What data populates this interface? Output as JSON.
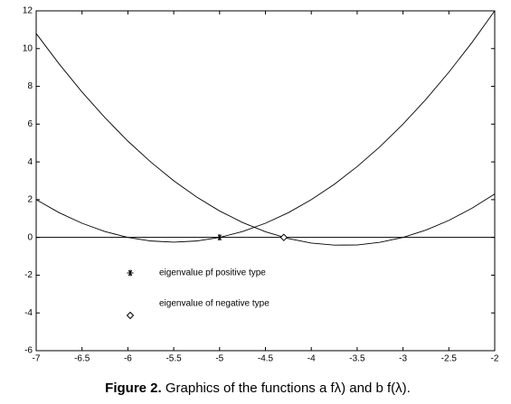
{
  "chart_data": {
    "type": "line",
    "x": [
      -7,
      -6.75,
      -6.5,
      -6.25,
      -6,
      -5.75,
      -5.5,
      -5.25,
      -5,
      -4.75,
      -4.5,
      -4.25,
      -4,
      -3.75,
      -3.5,
      -3.25,
      -3,
      -2.75,
      -2.5,
      -2.25,
      -2
    ],
    "series": [
      {
        "color": "#000000",
        "values": [
          10.8,
          9.19,
          7.7,
          6.34,
          5.1,
          3.99,
          3.0,
          2.14,
          1.4,
          0.79,
          0.3,
          -0.06,
          -0.3,
          -0.41,
          -0.4,
          -0.26,
          0,
          0.39,
          0.9,
          1.54,
          2.3
        ]
      },
      {
        "color": "#000000",
        "values": [
          2,
          1.31,
          0.75,
          0.31,
          0,
          -0.19,
          -0.25,
          -0.19,
          0,
          0.31,
          0.75,
          1.31,
          2,
          2.81,
          3.75,
          4.81,
          6,
          7.31,
          8.75,
          10.31,
          12
        ]
      }
    ],
    "markers": [
      {
        "x": -5,
        "y": 0,
        "symbol": "star"
      },
      {
        "x": -4.3,
        "y": 0,
        "symbol": "diamond"
      }
    ],
    "legend": [
      {
        "label": "eigenvalue pf positive type",
        "symbol": "star"
      },
      {
        "label": "eigenvalue of negative type",
        "symbol": "diamond"
      }
    ],
    "zero_line": true,
    "xlim": [
      -7,
      -2
    ],
    "xticks": [
      -7,
      -6.5,
      -6,
      -5.5,
      -5,
      -4.5,
      -4,
      -3.5,
      -3,
      -2.5,
      -2
    ],
    "ylim": [
      -6,
      12
    ],
    "yticks": [
      -6,
      -4,
      -2,
      0,
      2,
      4,
      6,
      8,
      10,
      12
    ],
    "caption_label": "Figure 2.",
    "caption_text": "Graphics of the functions a fλ) and b f(λ)."
  }
}
